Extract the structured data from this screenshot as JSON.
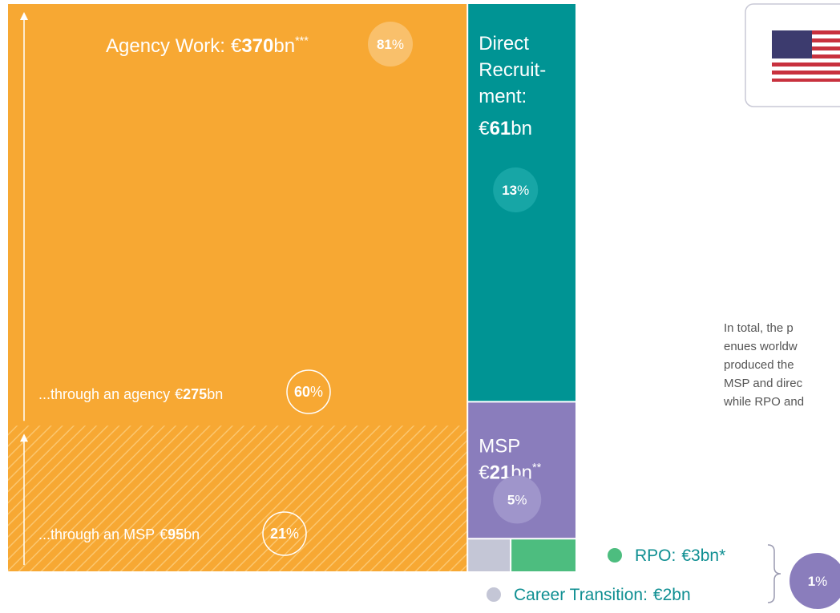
{
  "chart_data": {
    "type": "treemap",
    "currency": "€",
    "unit": "bn",
    "percent_sign": "%",
    "series": [
      {
        "name": "Agency Work:",
        "color": "#f7a833",
        "value": 370,
        "note": "***",
        "percent": 81,
        "children": [
          {
            "name": "...through an agency",
            "value": 275,
            "percent": 60
          },
          {
            "name": "...through an MSP",
            "value": 95,
            "percent": 21
          }
        ]
      },
      {
        "name_lines": [
          "Direct",
          "Recruit-",
          "ment:"
        ],
        "color": "#009494",
        "value": 61,
        "percent": 13
      },
      {
        "name": "MSP",
        "color": "#8a7dbc",
        "value": 21,
        "note": "**",
        "percent": 5
      },
      {
        "name": "Career Transition:",
        "color": "#c4c6d6",
        "value": 2
      },
      {
        "name": "RPO:",
        "color": "#4dbd7f",
        "value": 3,
        "note": "*"
      }
    ],
    "small_share_percent": 1
  },
  "side_text": {
    "lines": [
      "In total, the p",
      "enues worldw",
      "produced the",
      "MSP and direc",
      "while RPO and"
    ]
  }
}
